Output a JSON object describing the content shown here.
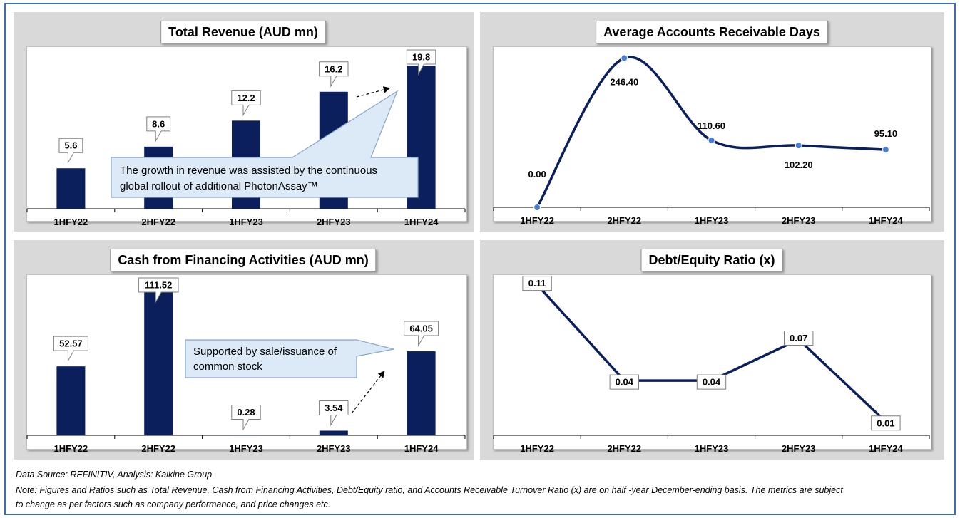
{
  "charts": {
    "revenue": {
      "title": "Total Revenue (AUD mn)",
      "callout": [
        "The growth in revenue was assisted by the continuous",
        "global rollout of additional PhotonAssay™"
      ]
    },
    "ar_days": {
      "title": "Average Accounts Receivable Days"
    },
    "cash_fin": {
      "title": "Cash from Financing Activities (AUD mn)",
      "callout": [
        "Supported by sale/issuance of",
        "common stock"
      ]
    },
    "de_ratio": {
      "title": "Debt/Equity Ratio (x)"
    }
  },
  "chart_data": [
    {
      "id": "revenue",
      "type": "bar",
      "title": "Total Revenue (AUD mn)",
      "categories": [
        "1HFY22",
        "2HFY22",
        "1HFY23",
        "2HFY23",
        "1HFY24"
      ],
      "values": [
        5.6,
        8.6,
        12.2,
        16.2,
        19.8
      ],
      "labels": [
        "5.6",
        "8.6",
        "12.2",
        "16.2",
        "19.8"
      ],
      "ylim": [
        0,
        22
      ],
      "color": "#0a1f5c"
    },
    {
      "id": "ar_days",
      "type": "line",
      "title": "Average Accounts Receivable Days",
      "categories": [
        "1HFY22",
        "2HFY22",
        "1HFY23",
        "2HFY23",
        "1HFY24"
      ],
      "values": [
        0.0,
        246.4,
        110.6,
        102.2,
        95.1
      ],
      "labels": [
        "0.00",
        "246.40",
        "110.60",
        "102.20",
        "95.10"
      ],
      "ylim": [
        0,
        260
      ],
      "color": "#0a1f5c",
      "marker_color": "#4a7fd4"
    },
    {
      "id": "cash_fin",
      "type": "bar",
      "title": "Cash from Financing Activities (AUD mn)",
      "categories": [
        "1HFY22",
        "2HFY22",
        "1HFY23",
        "2HFY23",
        "1HFY24"
      ],
      "values": [
        52.57,
        111.52,
        0.28,
        3.54,
        64.05
      ],
      "labels": [
        "52.57",
        "111.52",
        "0.28",
        "3.54",
        "64.05"
      ],
      "ylim": [
        0,
        120
      ],
      "color": "#0a1f5c"
    },
    {
      "id": "de_ratio",
      "type": "line",
      "title": "Debt/Equity Ratio (x)",
      "categories": [
        "1HFY22",
        "2HFY22",
        "1HFY23",
        "2HFY23",
        "1HFY24"
      ],
      "values": [
        0.11,
        0.04,
        0.04,
        0.07,
        0.01
      ],
      "labels": [
        "0.11",
        "0.04",
        "0.04",
        "0.07",
        "0.01"
      ],
      "ylim": [
        0,
        0.115
      ],
      "color": "#0a1f5c"
    }
  ],
  "footer": {
    "source": "Data Source: REFINITIV, Analysis: Kalkine Group",
    "note_line1": "Note: Figures and Ratios such as Total Revenue, Cash from Financing Activities, Debt/Equity ratio, and Accounts Receivable Turnover Ratio (x) are on half -year December-ending basis. The metrics are subject",
    "note_line2": "to change as per factors such as company performance, and price changes etc."
  }
}
